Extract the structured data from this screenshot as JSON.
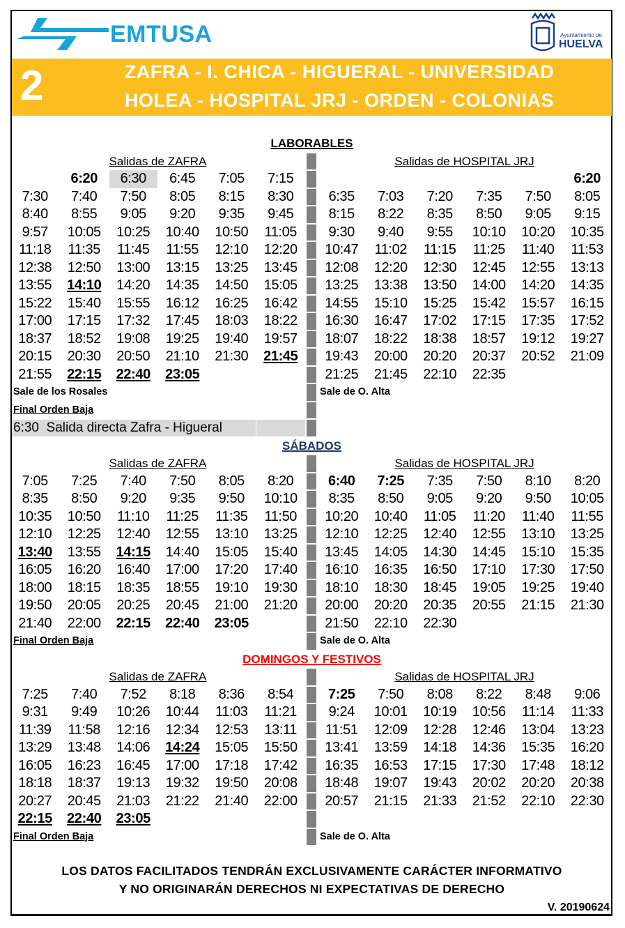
{
  "header": {
    "brand": "EMTUSA",
    "city_small": "Ayuntamiento de",
    "city": "HUELVA",
    "line_number": "2",
    "route_line1": "ZAFRA - I. CHICA - HIGUERAL - UNIVERSIDAD",
    "route_line2": "HOLEA - HOSPITAL JRJ - ORDEN - COLONIAS",
    "colors": {
      "brand": "#1aa3d9",
      "band": "#fbbd1f",
      "city": "#1d3f8f"
    }
  },
  "sections": [
    {
      "title": "LABORABLES",
      "title_color": "#000000",
      "left_header": "Salidas de ZAFRA",
      "right_header": "Salidas de HOSPITAL JRJ",
      "rows": [
        {
          "left": [
            "",
            {
              "t": "6:20",
              "bold": true
            },
            {
              "t": "6:30",
              "highlight": true
            },
            "6:45",
            "7:05",
            "7:15"
          ],
          "right": [
            "",
            "",
            "",
            "",
            "",
            {
              "t": "6:20",
              "bold": true
            }
          ]
        },
        {
          "left": [
            "7:30",
            "7:40",
            "7:50",
            "8:05",
            "8:15",
            "8:30"
          ],
          "right": [
            "6:35",
            "7:03",
            "7:20",
            "7:35",
            "7:50",
            "8:05"
          ]
        },
        {
          "left": [
            "8:40",
            "8:55",
            "9:05",
            "9:20",
            "9:35",
            "9:45"
          ],
          "right": [
            "8:15",
            "8:22",
            "8:35",
            "8:50",
            "9:05",
            "9:15"
          ]
        },
        {
          "left": [
            "9:57",
            "10:05",
            "10:25",
            "10:40",
            "10:50",
            "11:05"
          ],
          "right": [
            "9:30",
            "9:40",
            "9:55",
            "10:10",
            "10:20",
            "10:35"
          ]
        },
        {
          "left": [
            "11:18",
            "11:35",
            "11:45",
            "11:55",
            "12:10",
            "12:20"
          ],
          "right": [
            "10:47",
            "11:02",
            "11:15",
            "11:25",
            "11:40",
            "11:53"
          ]
        },
        {
          "left": [
            "12:38",
            "12:50",
            "13:00",
            "13:15",
            "13:25",
            "13:45"
          ],
          "right": [
            "12:08",
            "12:20",
            "12:30",
            "12:45",
            "12:55",
            "13:13"
          ]
        },
        {
          "left": [
            "13:55",
            {
              "t": "14:10",
              "bold": true,
              "underline": true
            },
            "14:20",
            "14:35",
            "14:50",
            "15:05"
          ],
          "right": [
            "13:25",
            "13:38",
            "13:50",
            "14:00",
            "14:20",
            "14:35"
          ]
        },
        {
          "left": [
            "15:22",
            "15:40",
            "15:55",
            "16:12",
            "16:25",
            "16:42"
          ],
          "right": [
            "14:55",
            "15:10",
            "15:25",
            "15:42",
            "15:57",
            "16:15"
          ]
        },
        {
          "left": [
            "17:00",
            "17:15",
            "17:32",
            "17:45",
            "18:03",
            "18:22"
          ],
          "right": [
            "16:30",
            "16:47",
            "17:02",
            "17:15",
            "17:35",
            "17:52"
          ]
        },
        {
          "left": [
            "18:37",
            "18:52",
            "19:08",
            "19:25",
            "19:40",
            "19:57"
          ],
          "right": [
            "18:07",
            "18:22",
            "18:38",
            "18:57",
            "19:12",
            "19:27"
          ]
        },
        {
          "left": [
            "20:15",
            "20:30",
            "20:50",
            "21:10",
            "21:30",
            {
              "t": "21:45",
              "bold": true,
              "underline": true
            }
          ],
          "right": [
            "19:43",
            "20:00",
            "20:20",
            "20:37",
            "20:52",
            "21:09"
          ]
        },
        {
          "left": [
            "21:55",
            {
              "t": "22:15",
              "bold": true,
              "underline": true
            },
            {
              "t": "22:40",
              "bold": true,
              "underline": true
            },
            {
              "t": "23:05",
              "bold": true,
              "underline": true
            }
          ],
          "right": [
            "21:25",
            "21:45",
            "22:10",
            "22:35"
          ]
        }
      ],
      "notes": [
        {
          "left": "Sale de los Rosales",
          "left_underline": false,
          "right": "Sale de O. Alta"
        },
        {
          "left": "Final Orden Baja",
          "left_underline": true,
          "right": ""
        }
      ],
      "direct_note": "6:30  Salida directa Zafra - Higueral"
    },
    {
      "title": "SÁBADOS",
      "title_color": "#1f3864",
      "left_header": "Salidas de ZAFRA",
      "right_header": "Salidas de HOSPITAL JRJ",
      "rows": [
        {
          "left": [
            "7:05",
            "7:25",
            "7:40",
            "7:50",
            "8:05",
            "8:20"
          ],
          "right": [
            {
              "t": "6:40",
              "bold": true
            },
            {
              "t": "7:25",
              "bold": true
            },
            "7:35",
            "7:50",
            "8:10",
            "8:20"
          ]
        },
        {
          "left": [
            "8:35",
            "8:50",
            "9:20",
            "9:35",
            "9:50",
            "10:10"
          ],
          "right": [
            "8:35",
            "8:50",
            "9:05",
            "9:20",
            "9:50",
            "10:05"
          ]
        },
        {
          "left": [
            "10:35",
            "10:50",
            "11:10",
            "11:25",
            "11:35",
            "11:50"
          ],
          "right": [
            "10:20",
            "10:40",
            "11:05",
            "11:20",
            "11:40",
            "11:55"
          ]
        },
        {
          "left": [
            "12:10",
            "12:25",
            "12:40",
            "12:55",
            "13:10",
            "13:25"
          ],
          "right": [
            "12:10",
            "12:25",
            "12:40",
            "12:55",
            "13:10",
            "13:25"
          ]
        },
        {
          "left": [
            {
              "t": "13:40",
              "bold": true,
              "underline": true
            },
            "13:55",
            {
              "t": "14:15",
              "bold": true,
              "underline": true
            },
            "14:40",
            "15:05",
            "15:40"
          ],
          "right": [
            "13:45",
            "14:05",
            "14:30",
            "14:45",
            "15:10",
            "15:35"
          ]
        },
        {
          "left": [
            "16:05",
            "16:20",
            "16:40",
            "17:00",
            "17:20",
            "17:40"
          ],
          "right": [
            "16:10",
            "16:35",
            "16:50",
            "17:10",
            "17:30",
            "17:50"
          ]
        },
        {
          "left": [
            "18:00",
            "18:15",
            "18:35",
            "18:55",
            "19:10",
            "19:30"
          ],
          "right": [
            "18:10",
            "18:30",
            "18:45",
            "19:05",
            "19:25",
            "19:40"
          ]
        },
        {
          "left": [
            "19:50",
            "20:05",
            "20:25",
            "20:45",
            "21:00",
            "21:20"
          ],
          "right": [
            "20:00",
            "20:20",
            "20:35",
            "20:55",
            "21:15",
            "21:30"
          ]
        },
        {
          "left": [
            "21:40",
            "22:00",
            {
              "t": "22:15",
              "bold": true
            },
            {
              "t": "22:40",
              "bold": true
            },
            {
              "t": "23:05",
              "bold": true
            }
          ],
          "right": [
            "21:50",
            "22:10",
            "22:30"
          ]
        }
      ],
      "notes": [
        {
          "left": "Final Orden Baja",
          "left_underline": true,
          "right": "Sale de O. Alta"
        }
      ]
    },
    {
      "title": "DOMINGOS Y FESTIVOS",
      "title_color": "#ff0000",
      "left_header": "Salidas de ZAFRA",
      "right_header": "Salidas de HOSPITAL JRJ",
      "rows": [
        {
          "left": [
            "7:25",
            "7:40",
            "7:52",
            "8:18",
            "8:36",
            "8:54"
          ],
          "right": [
            {
              "t": "7:25",
              "bold": true
            },
            "7:50",
            "8:08",
            "8:22",
            "8:48",
            "9:06"
          ]
        },
        {
          "left": [
            "9:31",
            "9:49",
            "10:26",
            "10:44",
            "11:03",
            "11:21"
          ],
          "right": [
            "9:24",
            "10:01",
            "10:19",
            "10:56",
            "11:14",
            "11:33"
          ]
        },
        {
          "left": [
            "11:39",
            "11:58",
            "12:16",
            "12:34",
            "12:53",
            "13:11"
          ],
          "right": [
            "11:51",
            "12:09",
            "12:28",
            "12:46",
            "13:04",
            "13:23"
          ]
        },
        {
          "left": [
            "13:29",
            "13:48",
            "14:06",
            {
              "t": "14:24",
              "bold": true,
              "underline": true
            },
            "15:05",
            "15:50"
          ],
          "right": [
            "13:41",
            "13:59",
            "14:18",
            "14:36",
            "15:35",
            "16:20"
          ]
        },
        {
          "left": [
            "16:05",
            "16:23",
            "16:45",
            "17:00",
            "17:18",
            "17:42"
          ],
          "right": [
            "16:35",
            "16:53",
            "17:15",
            "17:30",
            "17:48",
            "18:12"
          ]
        },
        {
          "left": [
            "18:18",
            "18:37",
            "19:13",
            "19:32",
            "19:50",
            "20:08"
          ],
          "right": [
            "18:48",
            "19:07",
            "19:43",
            "20:02",
            "20:20",
            "20:38"
          ]
        },
        {
          "left": [
            "20:27",
            "20:45",
            "21:03",
            "21:22",
            "21:40",
            "22:00"
          ],
          "right": [
            "20:57",
            "21:15",
            "21:33",
            "21:52",
            "22:10",
            "22:30"
          ]
        },
        {
          "left": [
            {
              "t": "22:15",
              "bold": true,
              "underline": true
            },
            {
              "t": "22:40",
              "bold": true,
              "underline": true
            },
            {
              "t": "23:05",
              "bold": true,
              "underline": true
            }
          ],
          "right": []
        }
      ],
      "notes": [
        {
          "left": "Final Orden Baja",
          "left_underline": true,
          "right": "Sale de O. Alta"
        }
      ]
    }
  ],
  "footer": {
    "disclaimer1": "LOS DATOS FACILITADOS TENDRÁN EXCLUSIVAMENTE CARÁCTER INFORMATIVO",
    "disclaimer2": "Y NO ORIGINARÁN DERECHOS NI EXPECTATIVAS DE DERECHO",
    "version": "V. 20190624"
  }
}
